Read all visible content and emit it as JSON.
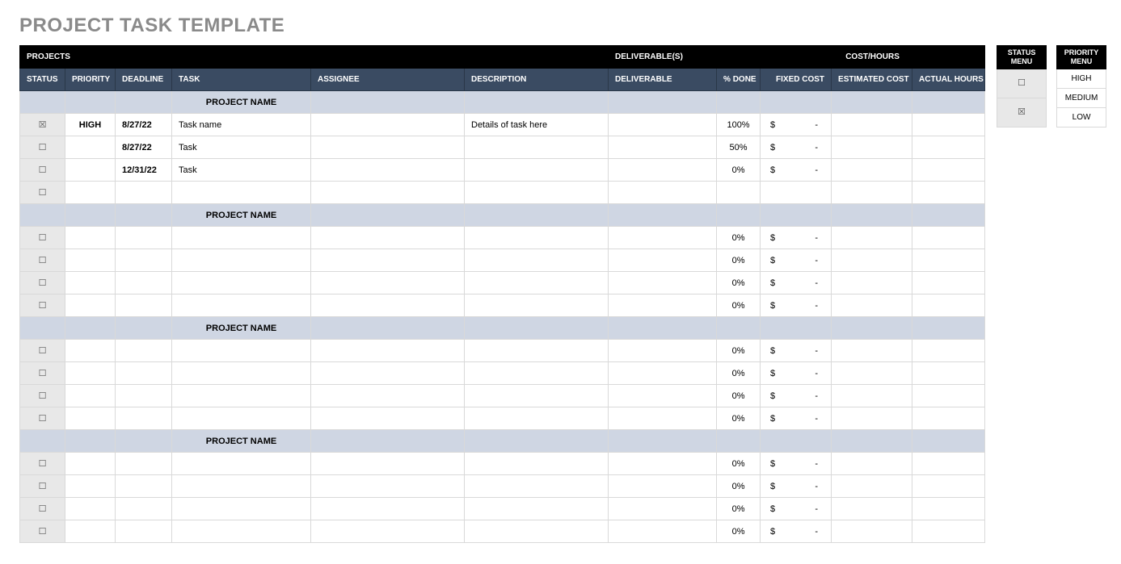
{
  "title": "PROJECT TASK TEMPLATE",
  "colors": {
    "page_title": "#8a8a8a",
    "header_top_bg": "#000000",
    "header_sub_bg": "#3a4b62",
    "header_text": "#ffffff",
    "project_row_bg": "#cfd6e3",
    "status_cell_bg": "#e8e8e8",
    "border": "#d9d9d9"
  },
  "checkbox": {
    "checked": "☒",
    "unchecked": "☐"
  },
  "top_headers": {
    "projects": "PROJECTS",
    "deliverables": "DELIVERABLE(S)",
    "cost_hours": "COST/HOURS"
  },
  "columns": {
    "status": "STATUS",
    "priority": "PRIORITY",
    "deadline": "DEADLINE",
    "task": "TASK",
    "assignee": "ASSIGNEE",
    "description": "DESCRIPTION",
    "deliverable": "DELIVERABLE",
    "pct_done": "% DONE",
    "fixed_cost": "FIXED COST",
    "estimated_cost": "ESTIMATED COST",
    "actual_hours": "ACTUAL HOURS"
  },
  "currency_symbol": "$",
  "dash": "-",
  "groups": [
    {
      "name": "PROJECT NAME",
      "rows": [
        {
          "status_checked": true,
          "priority": "HIGH",
          "deadline": "8/27/22",
          "task": "Task name",
          "assignee": "",
          "description": "Details of task here",
          "deliverable": "",
          "pct_done": "100%",
          "fixed_cost_has": true,
          "estimated_cost": "",
          "actual_hours": ""
        },
        {
          "status_checked": false,
          "priority": "",
          "deadline": "8/27/22",
          "task": "Task",
          "assignee": "",
          "description": "",
          "deliverable": "",
          "pct_done": "50%",
          "fixed_cost_has": true,
          "estimated_cost": "",
          "actual_hours": ""
        },
        {
          "status_checked": false,
          "priority": "",
          "deadline": "12/31/22",
          "task": "Task",
          "assignee": "",
          "description": "",
          "deliverable": "",
          "pct_done": "0%",
          "fixed_cost_has": true,
          "estimated_cost": "",
          "actual_hours": ""
        },
        {
          "status_checked": false,
          "priority": "",
          "deadline": "",
          "task": "",
          "assignee": "",
          "description": "",
          "deliverable": "",
          "pct_done": "",
          "fixed_cost_has": false,
          "estimated_cost": "",
          "actual_hours": ""
        }
      ]
    },
    {
      "name": "PROJECT NAME",
      "rows": [
        {
          "status_checked": false,
          "priority": "",
          "deadline": "",
          "task": "",
          "assignee": "",
          "description": "",
          "deliverable": "",
          "pct_done": "0%",
          "fixed_cost_has": true,
          "estimated_cost": "",
          "actual_hours": ""
        },
        {
          "status_checked": false,
          "priority": "",
          "deadline": "",
          "task": "",
          "assignee": "",
          "description": "",
          "deliverable": "",
          "pct_done": "0%",
          "fixed_cost_has": true,
          "estimated_cost": "",
          "actual_hours": ""
        },
        {
          "status_checked": false,
          "priority": "",
          "deadline": "",
          "task": "",
          "assignee": "",
          "description": "",
          "deliverable": "",
          "pct_done": "0%",
          "fixed_cost_has": true,
          "estimated_cost": "",
          "actual_hours": ""
        },
        {
          "status_checked": false,
          "priority": "",
          "deadline": "",
          "task": "",
          "assignee": "",
          "description": "",
          "deliverable": "",
          "pct_done": "0%",
          "fixed_cost_has": true,
          "estimated_cost": "",
          "actual_hours": ""
        }
      ]
    },
    {
      "name": "PROJECT NAME",
      "rows": [
        {
          "status_checked": false,
          "priority": "",
          "deadline": "",
          "task": "",
          "assignee": "",
          "description": "",
          "deliverable": "",
          "pct_done": "0%",
          "fixed_cost_has": true,
          "estimated_cost": "",
          "actual_hours": ""
        },
        {
          "status_checked": false,
          "priority": "",
          "deadline": "",
          "task": "",
          "assignee": "",
          "description": "",
          "deliverable": "",
          "pct_done": "0%",
          "fixed_cost_has": true,
          "estimated_cost": "",
          "actual_hours": ""
        },
        {
          "status_checked": false,
          "priority": "",
          "deadline": "",
          "task": "",
          "assignee": "",
          "description": "",
          "deliverable": "",
          "pct_done": "0%",
          "fixed_cost_has": true,
          "estimated_cost": "",
          "actual_hours": ""
        },
        {
          "status_checked": false,
          "priority": "",
          "deadline": "",
          "task": "",
          "assignee": "",
          "description": "",
          "deliverable": "",
          "pct_done": "0%",
          "fixed_cost_has": true,
          "estimated_cost": "",
          "actual_hours": ""
        }
      ]
    },
    {
      "name": "PROJECT NAME",
      "rows": [
        {
          "status_checked": false,
          "priority": "",
          "deadline": "",
          "task": "",
          "assignee": "",
          "description": "",
          "deliverable": "",
          "pct_done": "0%",
          "fixed_cost_has": true,
          "estimated_cost": "",
          "actual_hours": ""
        },
        {
          "status_checked": false,
          "priority": "",
          "deadline": "",
          "task": "",
          "assignee": "",
          "description": "",
          "deliverable": "",
          "pct_done": "0%",
          "fixed_cost_has": true,
          "estimated_cost": "",
          "actual_hours": ""
        },
        {
          "status_checked": false,
          "priority": "",
          "deadline": "",
          "task": "",
          "assignee": "",
          "description": "",
          "deliverable": "",
          "pct_done": "0%",
          "fixed_cost_has": true,
          "estimated_cost": "",
          "actual_hours": ""
        },
        {
          "status_checked": false,
          "priority": "",
          "deadline": "",
          "task": "",
          "assignee": "",
          "description": "",
          "deliverable": "",
          "pct_done": "0%",
          "fixed_cost_has": true,
          "estimated_cost": "",
          "actual_hours": ""
        }
      ]
    }
  ],
  "status_menu": {
    "title": "STATUS MENU",
    "items": [
      {
        "checked": false
      },
      {
        "checked": true
      }
    ]
  },
  "priority_menu": {
    "title": "PRIORITY MENU",
    "items": [
      "HIGH",
      "MEDIUM",
      "LOW"
    ]
  }
}
